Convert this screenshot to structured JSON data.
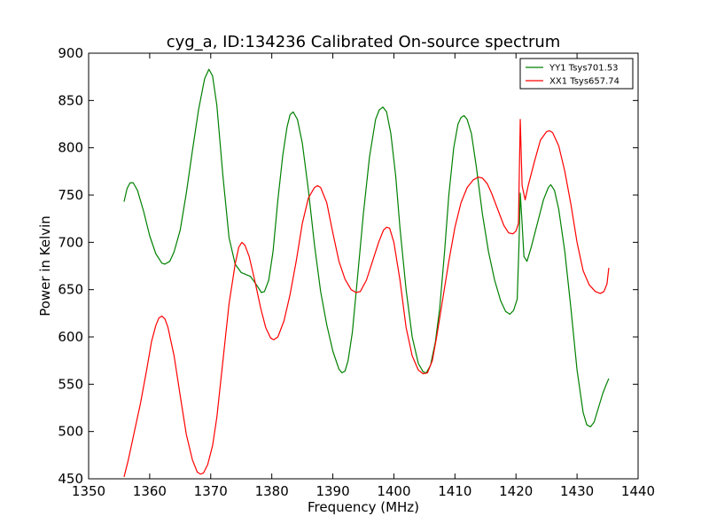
{
  "chart_data": {
    "type": "line",
    "title": "cyg_a, ID:134236 Calibrated On-source spectrum",
    "xlabel": "Frequency (MHz)",
    "ylabel": "Power in Kelvin",
    "xlim": [
      1350,
      1440
    ],
    "ylim": [
      450,
      900
    ],
    "xticks": [
      1350,
      1360,
      1370,
      1380,
      1390,
      1400,
      1410,
      1420,
      1430,
      1440
    ],
    "yticks": [
      450,
      500,
      550,
      600,
      650,
      700,
      750,
      800,
      850,
      900
    ],
    "grid": false,
    "legend_position": "top-right",
    "series": [
      {
        "name": "YY1 Tsys701.53",
        "color": "#008000",
        "points": [
          [
            1355.8,
            743
          ],
          [
            1356.3,
            757
          ],
          [
            1356.8,
            763
          ],
          [
            1357.3,
            763
          ],
          [
            1358.0,
            755
          ],
          [
            1359.0,
            733
          ],
          [
            1360.0,
            707
          ],
          [
            1361.0,
            688
          ],
          [
            1362.0,
            678
          ],
          [
            1362.5,
            677
          ],
          [
            1363.3,
            680
          ],
          [
            1364.0,
            690
          ],
          [
            1365.0,
            713
          ],
          [
            1366.0,
            752
          ],
          [
            1367.0,
            797
          ],
          [
            1368.0,
            840
          ],
          [
            1369.0,
            873
          ],
          [
            1369.7,
            883
          ],
          [
            1370.3,
            876
          ],
          [
            1371.0,
            845
          ],
          [
            1372.0,
            770
          ],
          [
            1373.0,
            705
          ],
          [
            1374.0,
            677
          ],
          [
            1375.0,
            668
          ],
          [
            1376.5,
            664
          ],
          [
            1377.5,
            655
          ],
          [
            1378.3,
            647
          ],
          [
            1378.8,
            648
          ],
          [
            1379.5,
            660
          ],
          [
            1380.2,
            690
          ],
          [
            1381.0,
            745
          ],
          [
            1381.8,
            792
          ],
          [
            1382.5,
            822
          ],
          [
            1383.0,
            835
          ],
          [
            1383.5,
            838
          ],
          [
            1384.2,
            830
          ],
          [
            1385.0,
            805
          ],
          [
            1386.0,
            755
          ],
          [
            1387.0,
            697
          ],
          [
            1388.0,
            648
          ],
          [
            1389.0,
            613
          ],
          [
            1390.0,
            585
          ],
          [
            1391.0,
            566
          ],
          [
            1391.5,
            562
          ],
          [
            1392.0,
            564
          ],
          [
            1392.5,
            575
          ],
          [
            1393.2,
            605
          ],
          [
            1394.0,
            660
          ],
          [
            1395.0,
            730
          ],
          [
            1396.0,
            790
          ],
          [
            1397.0,
            830
          ],
          [
            1397.6,
            840
          ],
          [
            1398.2,
            843
          ],
          [
            1398.8,
            838
          ],
          [
            1399.5,
            815
          ],
          [
            1400.3,
            770
          ],
          [
            1401.0,
            715
          ],
          [
            1402.0,
            650
          ],
          [
            1403.0,
            600
          ],
          [
            1404.0,
            572
          ],
          [
            1404.8,
            563
          ],
          [
            1405.3,
            562
          ],
          [
            1406.0,
            570
          ],
          [
            1406.8,
            595
          ],
          [
            1407.5,
            630
          ],
          [
            1408.3,
            690
          ],
          [
            1409.0,
            750
          ],
          [
            1409.8,
            800
          ],
          [
            1410.5,
            825
          ],
          [
            1411.0,
            832
          ],
          [
            1411.5,
            834
          ],
          [
            1412.0,
            830
          ],
          [
            1412.7,
            815
          ],
          [
            1413.5,
            780
          ],
          [
            1414.5,
            730
          ],
          [
            1415.5,
            690
          ],
          [
            1416.5,
            660
          ],
          [
            1417.5,
            638
          ],
          [
            1418.3,
            627
          ],
          [
            1419.0,
            624
          ],
          [
            1419.6,
            628
          ],
          [
            1420.2,
            640
          ],
          [
            1420.5,
            700
          ],
          [
            1420.7,
            752
          ],
          [
            1421.0,
            720
          ],
          [
            1421.3,
            685
          ],
          [
            1421.8,
            680
          ],
          [
            1422.5,
            695
          ],
          [
            1423.5,
            720
          ],
          [
            1424.5,
            745
          ],
          [
            1425.3,
            758
          ],
          [
            1425.7,
            761
          ],
          [
            1426.3,
            755
          ],
          [
            1427.0,
            735
          ],
          [
            1428.0,
            690
          ],
          [
            1429.0,
            630
          ],
          [
            1430.0,
            565
          ],
          [
            1431.0,
            520
          ],
          [
            1431.6,
            507
          ],
          [
            1432.2,
            505
          ],
          [
            1432.8,
            510
          ],
          [
            1433.5,
            525
          ],
          [
            1434.2,
            540
          ],
          [
            1434.8,
            550
          ],
          [
            1435.2,
            556
          ]
        ]
      },
      {
        "name": "XX1 Tsys657.74",
        "color": "#ff0000",
        "points": [
          [
            1355.8,
            452
          ],
          [
            1356.5,
            470
          ],
          [
            1357.5,
            500
          ],
          [
            1358.5,
            530
          ],
          [
            1359.5,
            565
          ],
          [
            1360.3,
            595
          ],
          [
            1361.0,
            612
          ],
          [
            1361.5,
            620
          ],
          [
            1362.0,
            622
          ],
          [
            1362.5,
            619
          ],
          [
            1363.0,
            610
          ],
          [
            1364.0,
            580
          ],
          [
            1365.0,
            538
          ],
          [
            1366.0,
            497
          ],
          [
            1367.0,
            470
          ],
          [
            1367.8,
            457
          ],
          [
            1368.3,
            455
          ],
          [
            1368.8,
            456
          ],
          [
            1369.5,
            465
          ],
          [
            1370.3,
            485
          ],
          [
            1371.0,
            515
          ],
          [
            1372.0,
            575
          ],
          [
            1373.0,
            635
          ],
          [
            1374.0,
            677
          ],
          [
            1374.6,
            695
          ],
          [
            1375.1,
            700
          ],
          [
            1375.6,
            697
          ],
          [
            1376.3,
            685
          ],
          [
            1377.2,
            660
          ],
          [
            1378.2,
            630
          ],
          [
            1379.0,
            610
          ],
          [
            1379.8,
            599
          ],
          [
            1380.3,
            597
          ],
          [
            1381.0,
            600
          ],
          [
            1382.0,
            617
          ],
          [
            1383.0,
            645
          ],
          [
            1384.0,
            680
          ],
          [
            1385.0,
            720
          ],
          [
            1386.0,
            747
          ],
          [
            1387.0,
            758
          ],
          [
            1387.5,
            760
          ],
          [
            1388.0,
            758
          ],
          [
            1389.0,
            742
          ],
          [
            1390.0,
            710
          ],
          [
            1391.0,
            680
          ],
          [
            1392.0,
            661
          ],
          [
            1393.0,
            650
          ],
          [
            1393.8,
            647
          ],
          [
            1394.5,
            648
          ],
          [
            1395.5,
            660
          ],
          [
            1396.5,
            680
          ],
          [
            1397.5,
            700
          ],
          [
            1398.3,
            713
          ],
          [
            1398.8,
            716
          ],
          [
            1399.3,
            715
          ],
          [
            1400.0,
            700
          ],
          [
            1401.0,
            660
          ],
          [
            1402.0,
            610
          ],
          [
            1403.0,
            580
          ],
          [
            1404.0,
            565
          ],
          [
            1404.8,
            561
          ],
          [
            1405.5,
            562
          ],
          [
            1406.3,
            575
          ],
          [
            1407.0,
            600
          ],
          [
            1408.0,
            640
          ],
          [
            1409.0,
            680
          ],
          [
            1410.0,
            716
          ],
          [
            1411.0,
            742
          ],
          [
            1412.0,
            758
          ],
          [
            1413.0,
            766
          ],
          [
            1413.8,
            769
          ],
          [
            1414.5,
            768
          ],
          [
            1415.3,
            762
          ],
          [
            1416.0,
            752
          ],
          [
            1417.0,
            735
          ],
          [
            1418.0,
            718
          ],
          [
            1418.8,
            710
          ],
          [
            1419.5,
            709
          ],
          [
            1420.0,
            712
          ],
          [
            1420.4,
            720
          ],
          [
            1420.7,
            830
          ],
          [
            1421.0,
            760
          ],
          [
            1421.5,
            745
          ],
          [
            1422.0,
            760
          ],
          [
            1423.0,
            785
          ],
          [
            1424.0,
            808
          ],
          [
            1425.0,
            817
          ],
          [
            1425.5,
            818
          ],
          [
            1426.0,
            816
          ],
          [
            1427.0,
            802
          ],
          [
            1428.0,
            775
          ],
          [
            1429.0,
            740
          ],
          [
            1430.0,
            700
          ],
          [
            1431.0,
            670
          ],
          [
            1432.0,
            655
          ],
          [
            1433.0,
            648
          ],
          [
            1433.8,
            646
          ],
          [
            1434.4,
            648
          ],
          [
            1434.9,
            656
          ],
          [
            1435.2,
            673
          ]
        ]
      }
    ]
  }
}
